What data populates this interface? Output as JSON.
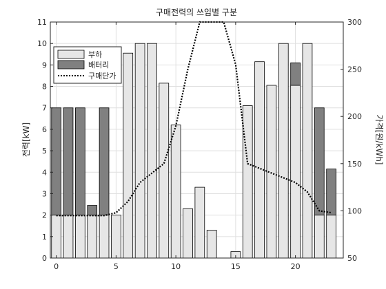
{
  "chart_data": {
    "type": "bar",
    "title": "구매전력의 쓰임별 구분",
    "x": [
      0,
      1,
      2,
      3,
      4,
      5,
      6,
      7,
      8,
      9,
      10,
      11,
      12,
      13,
      14,
      15,
      16,
      17,
      18,
      19,
      20,
      21,
      22,
      23
    ],
    "xlim": [
      -0.5,
      24
    ],
    "xticks": [
      0,
      5,
      10,
      15,
      20
    ],
    "ylabel_left": "전력[kW]",
    "ylim_left": [
      0,
      11
    ],
    "yticks_left": [
      0,
      1,
      2,
      3,
      4,
      5,
      6,
      7,
      8,
      9,
      10,
      11
    ],
    "ylabel_right": "가격[원/kWh]",
    "ylim_right": [
      50,
      300
    ],
    "yticks_right": [
      50,
      100,
      150,
      200,
      250,
      300
    ],
    "series": [
      {
        "name": "부하",
        "kind": "stacked-bar",
        "color": "#e6e6e6",
        "values": [
          2,
          2,
          2,
          2,
          2,
          2,
          9.55,
          10,
          10,
          8.15,
          6.2,
          2.3,
          3.3,
          1.3,
          0,
          0.3,
          7.1,
          9.15,
          8.05,
          10,
          8.05,
          10,
          2,
          2
        ]
      },
      {
        "name": "배터리",
        "kind": "stacked-bar",
        "color": "#808080",
        "values": [
          5,
          5,
          5,
          0.45,
          5,
          0,
          0,
          0,
          0,
          0,
          0,
          0,
          0,
          0,
          0,
          0,
          0,
          0,
          0,
          0,
          1.05,
          0,
          5,
          2.15
        ]
      },
      {
        "name": "구매단가",
        "kind": "line",
        "axis": "right",
        "color": "#000000",
        "style": "dotted",
        "x": [
          0,
          1,
          2,
          3,
          4,
          5,
          6,
          7,
          8,
          9,
          10,
          11,
          12,
          13,
          14,
          15,
          16,
          17,
          18,
          19,
          20,
          21,
          22,
          23
        ],
        "values": [
          95,
          95,
          95,
          95,
          95,
          98,
          110,
          130,
          140,
          150,
          190,
          250,
          300,
          300,
          300,
          255,
          150,
          145,
          140,
          135,
          130,
          120,
          100,
          98
        ]
      }
    ],
    "legend_position": "top-left",
    "grid": true
  }
}
